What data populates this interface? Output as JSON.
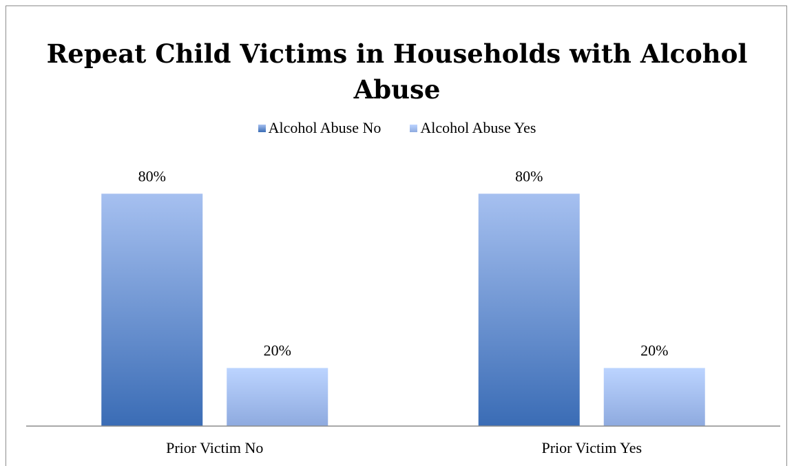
{
  "chart_data": {
    "type": "bar",
    "title": "Repeat Child Victims in Households with Alcohol Abuse",
    "categories": [
      "Prior Victim No",
      "Prior Victim Yes"
    ],
    "series": [
      {
        "name": "Alcohol Abuse No",
        "values": [
          80,
          80
        ],
        "labels": [
          "80%",
          "80%"
        ],
        "color_top": "#a6c0f0",
        "color_bottom": "#3a6cb5"
      },
      {
        "name": "Alcohol Abuse Yes",
        "values": [
          20,
          20
        ],
        "labels": [
          "20%",
          "20%"
        ],
        "color_top": "#bcd4ff",
        "color_bottom": "#8eaadf"
      }
    ],
    "ylim": [
      0,
      100
    ],
    "grid": false,
    "legend_position": "top",
    "axis_line_color": "#8c8c8c"
  }
}
